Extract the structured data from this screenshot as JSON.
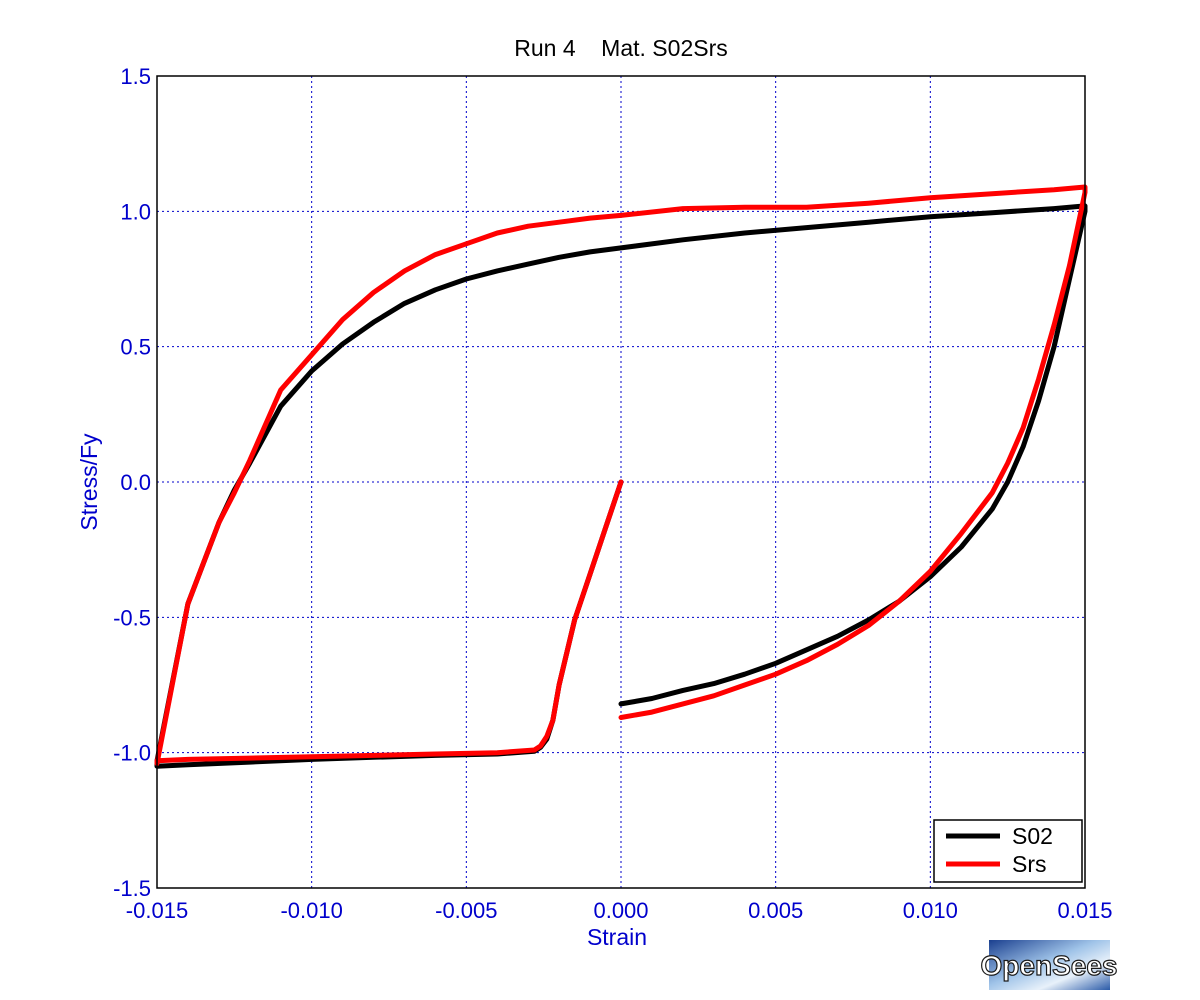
{
  "logo": {
    "text": "OpenSees"
  },
  "chart_data": {
    "type": "line",
    "title": "Run 4    Mat. S02Srs",
    "xlabel": "Strain",
    "ylabel": "Stress/Fy",
    "xlim": [
      -0.015,
      0.015
    ],
    "ylim": [
      -1.5,
      1.5
    ],
    "xticks": [
      -0.015,
      -0.01,
      -0.005,
      0.0,
      0.005,
      0.01,
      0.015
    ],
    "xtick_labels": [
      "-0.015",
      "-0.010",
      "-0.005",
      "0.000",
      "0.005",
      "0.010",
      "0.015"
    ],
    "yticks": [
      1.5,
      1.0,
      0.5,
      0.0,
      -0.5,
      -1.0,
      -1.5
    ],
    "ytick_labels": [
      "1.5",
      "1.0",
      "0.5",
      "0.0",
      "-0.5",
      "-1.0",
      "-1.5"
    ],
    "grid": true,
    "legend_position": "bottom-right",
    "colors": {
      "axis_text": "#0000cc",
      "grid": "#0000cc",
      "frame": "#000000"
    },
    "series": [
      {
        "name": "S02",
        "color": "#000000",
        "points": [
          [
            0.0,
            0.0
          ],
          [
            -0.0005,
            -0.17
          ],
          [
            -0.001,
            -0.34
          ],
          [
            -0.0015,
            -0.51
          ],
          [
            -0.002,
            -0.75
          ],
          [
            -0.0022,
            -0.88
          ],
          [
            -0.0024,
            -0.95
          ],
          [
            -0.0026,
            -0.98
          ],
          [
            -0.0028,
            -0.995
          ],
          [
            -0.004,
            -1.005
          ],
          [
            -0.006,
            -1.01
          ],
          [
            -0.008,
            -1.017
          ],
          [
            -0.01,
            -1.025
          ],
          [
            -0.012,
            -1.035
          ],
          [
            -0.014,
            -1.045
          ],
          [
            -0.015,
            -1.05
          ],
          [
            -0.015,
            -1.03
          ],
          [
            -0.014,
            -0.45
          ],
          [
            -0.013,
            -0.15
          ],
          [
            -0.0125,
            -0.03
          ],
          [
            -0.012,
            0.07
          ],
          [
            -0.011,
            0.28
          ],
          [
            -0.01,
            0.41
          ],
          [
            -0.009,
            0.51
          ],
          [
            -0.008,
            0.59
          ],
          [
            -0.007,
            0.66
          ],
          [
            -0.006,
            0.71
          ],
          [
            -0.005,
            0.75
          ],
          [
            -0.004,
            0.78
          ],
          [
            -0.003,
            0.805
          ],
          [
            -0.002,
            0.83
          ],
          [
            -0.001,
            0.85
          ],
          [
            0.0,
            0.865
          ],
          [
            0.002,
            0.895
          ],
          [
            0.004,
            0.92
          ],
          [
            0.006,
            0.94
          ],
          [
            0.008,
            0.96
          ],
          [
            0.01,
            0.98
          ],
          [
            0.012,
            0.995
          ],
          [
            0.014,
            1.01
          ],
          [
            0.015,
            1.02
          ],
          [
            0.015,
            1.0
          ],
          [
            0.0145,
            0.75
          ],
          [
            0.014,
            0.5
          ],
          [
            0.0135,
            0.3
          ],
          [
            0.013,
            0.13
          ],
          [
            0.0125,
            0.0
          ],
          [
            0.012,
            -0.1
          ],
          [
            0.011,
            -0.24
          ],
          [
            0.01,
            -0.35
          ],
          [
            0.009,
            -0.44
          ],
          [
            0.008,
            -0.51
          ],
          [
            0.007,
            -0.57
          ],
          [
            0.006,
            -0.62
          ],
          [
            0.005,
            -0.67
          ],
          [
            0.004,
            -0.71
          ],
          [
            0.003,
            -0.745
          ],
          [
            0.002,
            -0.77
          ],
          [
            0.001,
            -0.8
          ],
          [
            0.0,
            -0.82
          ]
        ]
      },
      {
        "name": "Srs",
        "color": "#ff0000",
        "points": [
          [
            0.0,
            0.0
          ],
          [
            -0.0005,
            -0.17
          ],
          [
            -0.001,
            -0.34
          ],
          [
            -0.0015,
            -0.51
          ],
          [
            -0.002,
            -0.75
          ],
          [
            -0.0022,
            -0.88
          ],
          [
            -0.0024,
            -0.94
          ],
          [
            -0.0026,
            -0.975
          ],
          [
            -0.0028,
            -0.99
          ],
          [
            -0.004,
            -1.0
          ],
          [
            -0.006,
            -1.005
          ],
          [
            -0.008,
            -1.01
          ],
          [
            -0.01,
            -1.015
          ],
          [
            -0.012,
            -1.02
          ],
          [
            -0.014,
            -1.025
          ],
          [
            -0.015,
            -1.03
          ],
          [
            -0.015,
            -1.04
          ],
          [
            -0.014,
            -0.45
          ],
          [
            -0.013,
            -0.15
          ],
          [
            -0.0125,
            -0.04
          ],
          [
            -0.012,
            0.08
          ],
          [
            -0.011,
            0.34
          ],
          [
            -0.01,
            0.47
          ],
          [
            -0.009,
            0.6
          ],
          [
            -0.008,
            0.7
          ],
          [
            -0.007,
            0.78
          ],
          [
            -0.006,
            0.84
          ],
          [
            -0.005,
            0.88
          ],
          [
            -0.004,
            0.92
          ],
          [
            -0.003,
            0.945
          ],
          [
            -0.002,
            0.96
          ],
          [
            -0.001,
            0.975
          ],
          [
            0.0,
            0.985
          ],
          [
            0.002,
            1.01
          ],
          [
            0.004,
            1.015
          ],
          [
            0.006,
            1.015
          ],
          [
            0.008,
            1.03
          ],
          [
            0.01,
            1.05
          ],
          [
            0.012,
            1.065
          ],
          [
            0.014,
            1.08
          ],
          [
            0.015,
            1.09
          ],
          [
            0.015,
            1.07
          ],
          [
            0.0145,
            0.8
          ],
          [
            0.014,
            0.58
          ],
          [
            0.0135,
            0.38
          ],
          [
            0.013,
            0.2
          ],
          [
            0.0125,
            0.07
          ],
          [
            0.012,
            -0.04
          ],
          [
            0.011,
            -0.19
          ],
          [
            0.01,
            -0.33
          ],
          [
            0.009,
            -0.44
          ],
          [
            0.008,
            -0.53
          ],
          [
            0.007,
            -0.6
          ],
          [
            0.006,
            -0.66
          ],
          [
            0.005,
            -0.71
          ],
          [
            0.004,
            -0.75
          ],
          [
            0.003,
            -0.79
          ],
          [
            0.002,
            -0.82
          ],
          [
            0.001,
            -0.85
          ],
          [
            0.0,
            -0.87
          ]
        ]
      }
    ]
  }
}
